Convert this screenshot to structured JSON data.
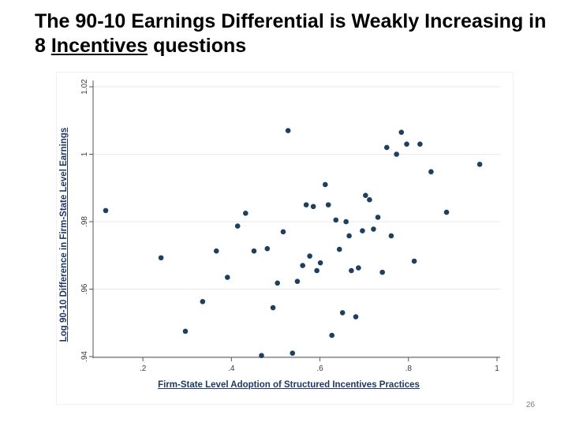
{
  "slide": {
    "title_part1": "The 90-10 Earnings Differential is Weakly Increasing in 8 ",
    "title_emph": "Incentives",
    "title_part2": " questions",
    "page_number": "26"
  },
  "chart_data": {
    "type": "scatter",
    "title": "",
    "xlabel": "Firm-State Level Adoption of Structured Incentives Practices",
    "ylabel": "Log 90-10 Difference in Firm-State Level Earnings",
    "xlim": [
      0.1,
      1.0
    ],
    "ylim": [
      0.94,
      1.02
    ],
    "xticks": [
      0.2,
      0.4,
      0.6,
      0.8,
      1.0
    ],
    "xtick_labels": [
      ".2",
      ".4",
      ".6",
      ".8",
      "1"
    ],
    "yticks": [
      0.94,
      0.96,
      0.98,
      1.0,
      1.02
    ],
    "ytick_labels": [
      ".94",
      ".96",
      ".98",
      "1",
      "1.02"
    ],
    "grid": true,
    "marker_color": "#1f3f5e",
    "points": [
      {
        "x": 0.116,
        "y": 0.9833
      },
      {
        "x": 0.241,
        "y": 0.9693
      },
      {
        "x": 0.296,
        "y": 0.9475
      },
      {
        "x": 0.335,
        "y": 0.9563
      },
      {
        "x": 0.366,
        "y": 0.9713
      },
      {
        "x": 0.391,
        "y": 0.9635
      },
      {
        "x": 0.414,
        "y": 0.9787
      },
      {
        "x": 0.432,
        "y": 0.9825
      },
      {
        "x": 0.451,
        "y": 0.9713
      },
      {
        "x": 0.468,
        "y": 0.9403
      },
      {
        "x": 0.481,
        "y": 0.972
      },
      {
        "x": 0.494,
        "y": 0.9545
      },
      {
        "x": 0.504,
        "y": 0.9618
      },
      {
        "x": 0.517,
        "y": 0.977
      },
      {
        "x": 0.528,
        "y": 1.007
      },
      {
        "x": 0.538,
        "y": 0.941
      },
      {
        "x": 0.549,
        "y": 0.9623
      },
      {
        "x": 0.561,
        "y": 0.967
      },
      {
        "x": 0.569,
        "y": 0.985
      },
      {
        "x": 0.577,
        "y": 0.9698
      },
      {
        "x": 0.585,
        "y": 0.9845
      },
      {
        "x": 0.593,
        "y": 0.9655
      },
      {
        "x": 0.601,
        "y": 0.9678
      },
      {
        "x": 0.612,
        "y": 0.991
      },
      {
        "x": 0.619,
        "y": 0.985
      },
      {
        "x": 0.627,
        "y": 0.9463
      },
      {
        "x": 0.636,
        "y": 0.9805
      },
      {
        "x": 0.644,
        "y": 0.9718
      },
      {
        "x": 0.651,
        "y": 0.953
      },
      {
        "x": 0.659,
        "y": 0.98
      },
      {
        "x": 0.666,
        "y": 0.9758
      },
      {
        "x": 0.671,
        "y": 0.9655
      },
      {
        "x": 0.681,
        "y": 0.9518
      },
      {
        "x": 0.687,
        "y": 0.9663
      },
      {
        "x": 0.696,
        "y": 0.9773
      },
      {
        "x": 0.703,
        "y": 0.9878
      },
      {
        "x": 0.712,
        "y": 0.9865
      },
      {
        "x": 0.721,
        "y": 0.9778
      },
      {
        "x": 0.731,
        "y": 0.9813
      },
      {
        "x": 0.741,
        "y": 0.965
      },
      {
        "x": 0.751,
        "y": 1.002
      },
      {
        "x": 0.761,
        "y": 0.9758
      },
      {
        "x": 0.773,
        "y": 1.0
      },
      {
        "x": 0.784,
        "y": 1.0065
      },
      {
        "x": 0.796,
        "y": 1.003
      },
      {
        "x": 0.813,
        "y": 0.9683
      },
      {
        "x": 0.826,
        "y": 1.003
      },
      {
        "x": 0.851,
        "y": 0.9948
      },
      {
        "x": 0.886,
        "y": 0.9828
      },
      {
        "x": 0.961,
        "y": 0.997
      }
    ]
  }
}
